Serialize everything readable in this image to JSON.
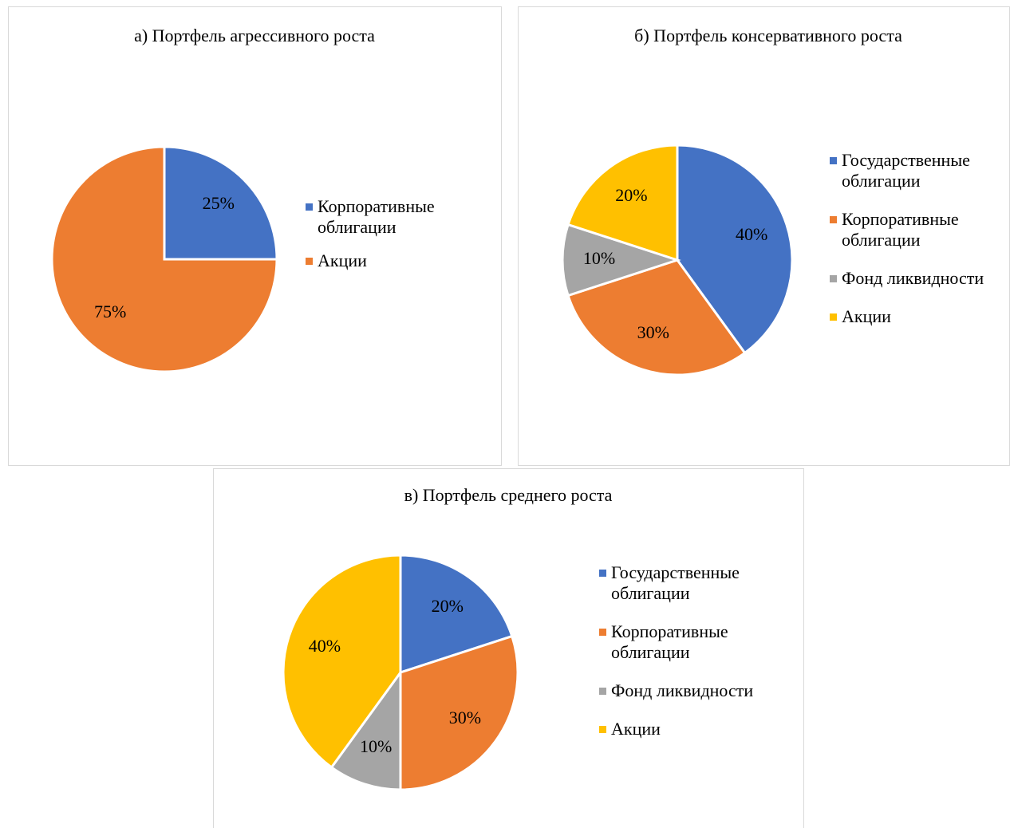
{
  "chart_data": [
    {
      "type": "pie",
      "title": "а) Портфель агрессивного роста",
      "categories": [
        "Корпоративные облигации",
        "Акции"
      ],
      "values": [
        25,
        75
      ],
      "value_labels": [
        "25%",
        "75%"
      ],
      "colors": [
        "#4472c4",
        "#ed7d31"
      ],
      "legend": "right"
    },
    {
      "type": "pie",
      "title": "б) Портфель консервативного роста",
      "categories": [
        "Государственные облигации",
        "Корпоративные облигации",
        "Фонд ликвидности",
        "Акции"
      ],
      "values": [
        40,
        30,
        10,
        20
      ],
      "value_labels": [
        "40%",
        "30%",
        "10%",
        "20%"
      ],
      "colors": [
        "#4472c4",
        "#ed7d31",
        "#a5a5a5",
        "#ffc000"
      ],
      "legend": "right"
    },
    {
      "type": "pie",
      "title": "в) Портфель среднего роста",
      "categories": [
        "Государственные облигации",
        "Корпоративные облигации",
        "Фонд ликвидности",
        "Акции"
      ],
      "values": [
        20,
        30,
        10,
        40
      ],
      "value_labels": [
        "20%",
        "30%",
        "10%",
        "40%"
      ],
      "colors": [
        "#4472c4",
        "#ed7d31",
        "#a5a5a5",
        "#ffc000"
      ],
      "legend": "right"
    }
  ]
}
